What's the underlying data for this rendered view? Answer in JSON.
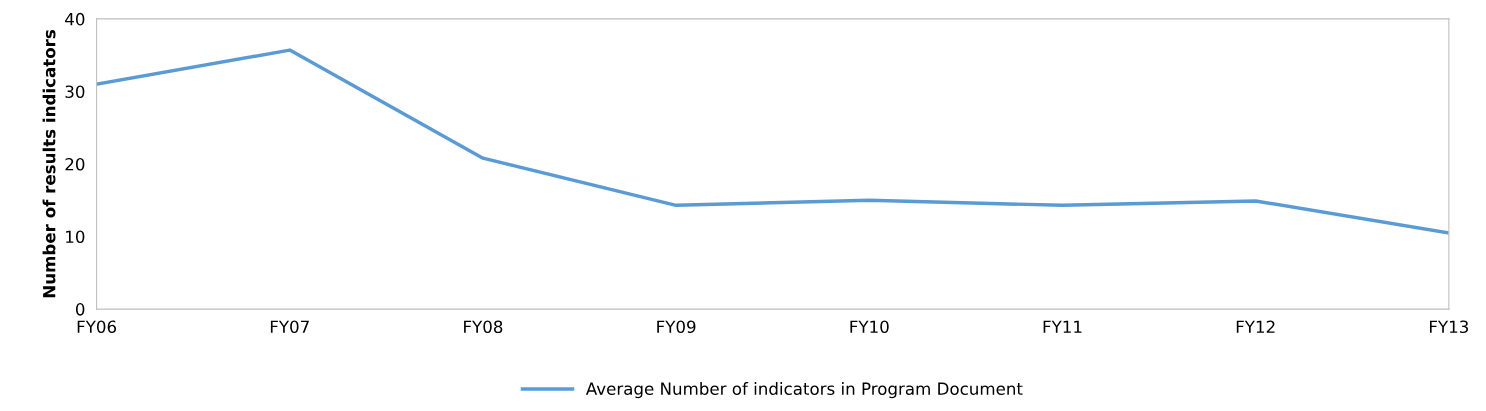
{
  "chart_data": {
    "type": "line",
    "ylabel": "Number of results indicators",
    "categories": [
      "FY06",
      "FY07",
      "FY08",
      "FY09",
      "FY10",
      "FY11",
      "FY12",
      "FY13"
    ],
    "series": [
      {
        "name": "Average Number of indicators in Program Document",
        "color": "#5b9bd5",
        "values": [
          31,
          35.7,
          20.8,
          14.3,
          15,
          14.3,
          14.9,
          10.5
        ]
      }
    ],
    "ylim": [
      0,
      40
    ],
    "yticks": [
      0,
      10,
      20,
      30,
      40
    ],
    "grid": false,
    "legend": "bottom",
    "marker": "none",
    "line_style": "solid"
  }
}
